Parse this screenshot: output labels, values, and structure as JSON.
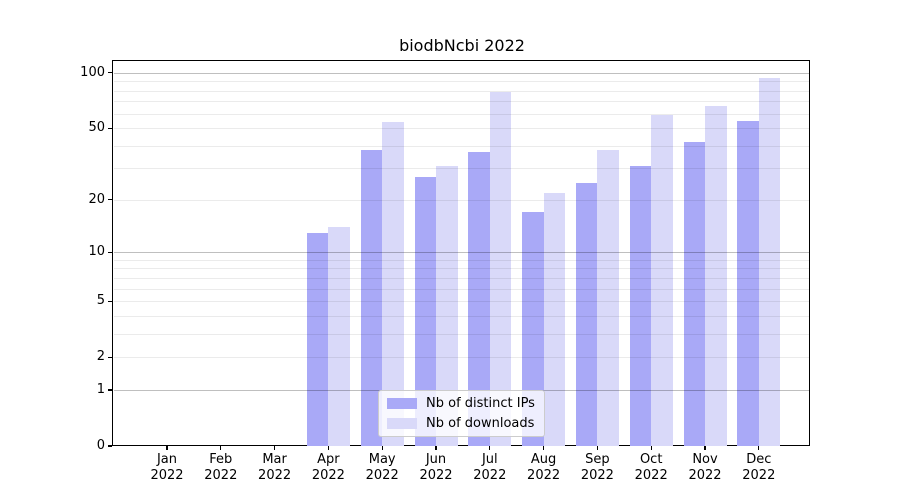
{
  "chart_data": {
    "type": "bar",
    "title": "biodbNcbi 2022",
    "categories": [
      "Jan",
      "Feb",
      "Mar",
      "Apr",
      "May",
      "Jun",
      "Jul",
      "Aug",
      "Sep",
      "Oct",
      "Nov",
      "Dec"
    ],
    "year": "2022",
    "series": [
      {
        "name": "Nb of distinct IPs",
        "color": "#a9a9f7",
        "values": [
          0,
          0,
          0,
          13,
          38,
          27,
          37,
          17,
          25,
          31,
          42,
          55
        ]
      },
      {
        "name": "Nb of downloads",
        "color": "#d9d9f9",
        "values": [
          0,
          0,
          0,
          14,
          54,
          31,
          79,
          22,
          38,
          59,
          66,
          94
        ]
      }
    ],
    "xlabel": "",
    "ylabel": "",
    "yscale": "log1p",
    "ylim": [
      0,
      116
    ],
    "ytick_labels": [
      0,
      1,
      2,
      5,
      10,
      20,
      50,
      100
    ],
    "grid": {
      "enabled": true,
      "major_at": [
        1,
        10,
        100
      ],
      "minor_at": [
        2,
        3,
        4,
        5,
        6,
        7,
        8,
        9,
        20,
        30,
        40,
        50,
        60,
        70,
        80,
        90
      ]
    },
    "legend_position": "lower center"
  }
}
